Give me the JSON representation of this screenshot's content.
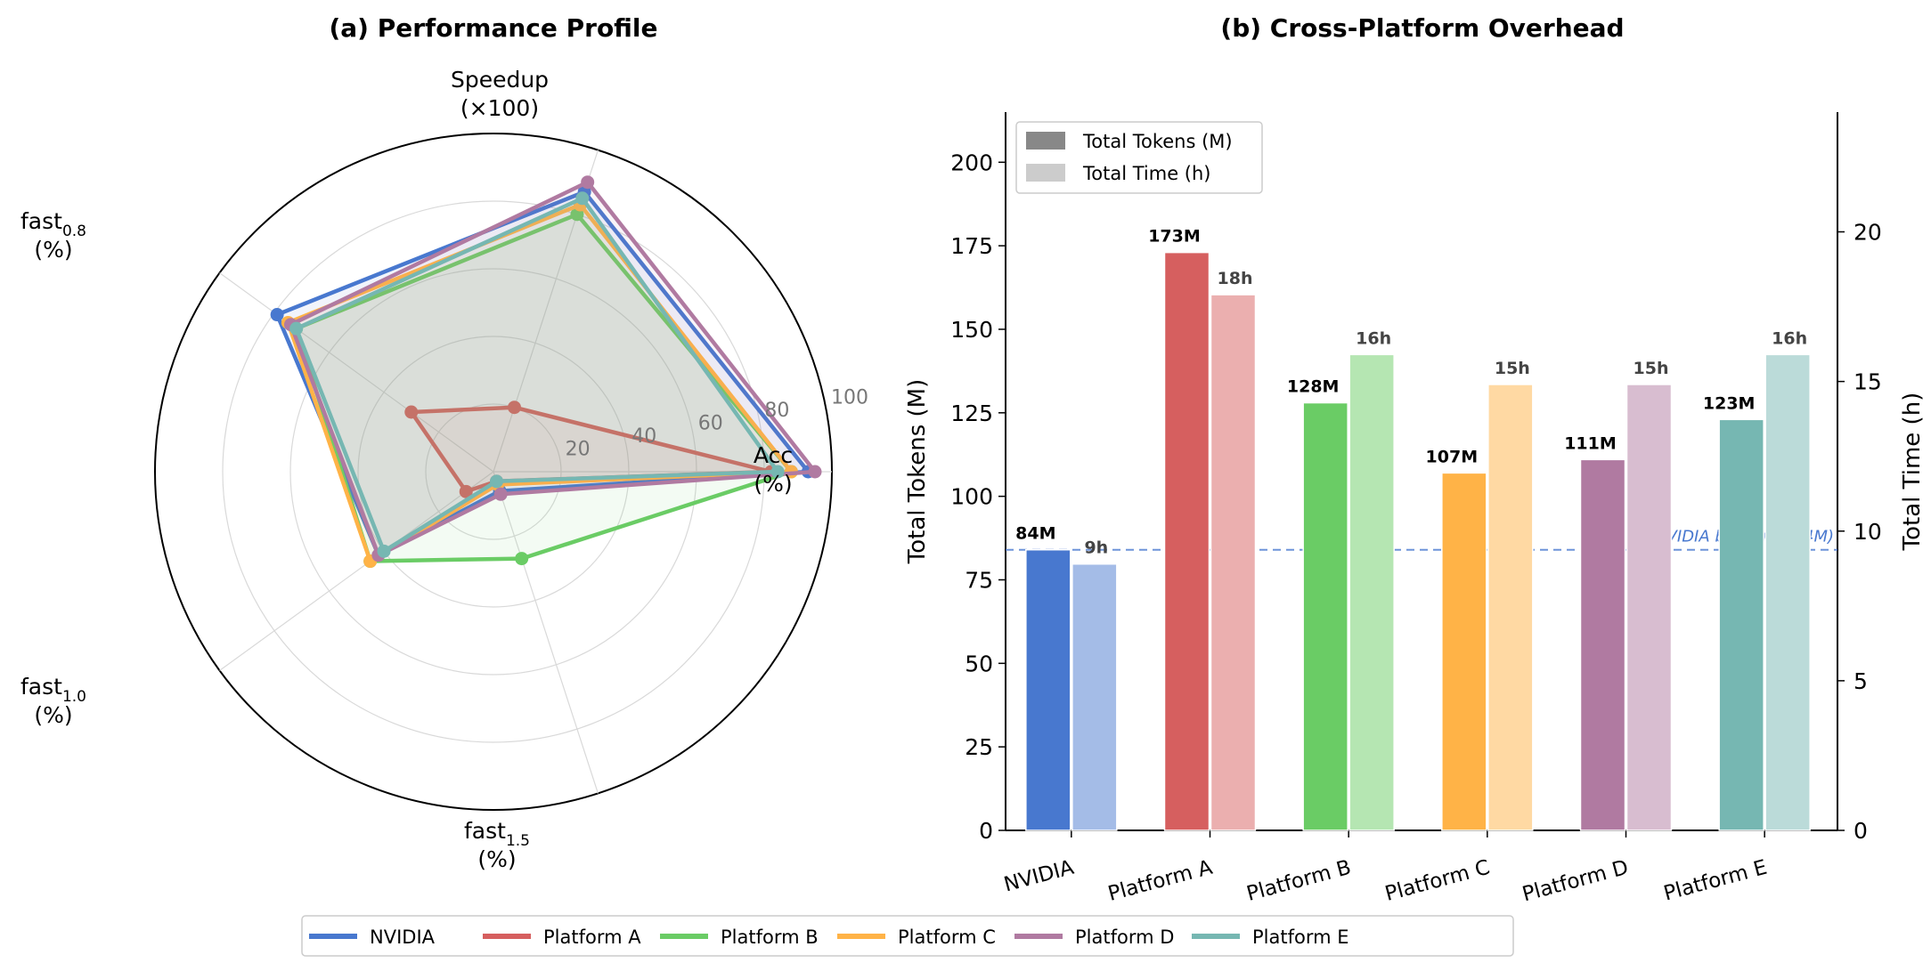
{
  "colors": {
    "NVIDIA": "#4878cf",
    "Platform A": "#d65f5f",
    "Platform B": "#6acc65",
    "Platform C": "#ffb347",
    "Platform D": "#b07aa1",
    "Platform E": "#76b7b2"
  },
  "legend": {
    "entries": [
      "NVIDIA",
      "Platform A",
      "Platform B",
      "Platform C",
      "Platform D",
      "Platform E"
    ]
  },
  "chart_data": [
    {
      "type": "radar",
      "title": "(a) Performance Profile",
      "axes": [
        {
          "key": "acc",
          "label_main": "Acc",
          "label_sub": "",
          "label_unit": "(%)"
        },
        {
          "key": "speedup",
          "label_main": "Speedup",
          "label_sub": "",
          "label_unit": "(×100)"
        },
        {
          "key": "fast08",
          "label_main": "fast",
          "label_sub": "0.8",
          "label_unit": "(%)"
        },
        {
          "key": "fast10",
          "label_main": "fast",
          "label_sub": "1.0",
          "label_unit": "(%)"
        },
        {
          "key": "fast15",
          "label_main": "fast",
          "label_sub": "1.5",
          "label_unit": "(%)"
        }
      ],
      "rlim": [
        0,
        100
      ],
      "rticks": [
        20,
        40,
        60,
        80,
        100
      ],
      "grid": true,
      "series": [
        {
          "name": "NVIDIA",
          "values": [
            93,
            87,
            79,
            42,
            6
          ]
        },
        {
          "name": "Platform A",
          "values": [
            82,
            20,
            30,
            10,
            3
          ]
        },
        {
          "name": "Platform B",
          "values": [
            88,
            80,
            72,
            45,
            27
          ]
        },
        {
          "name": "Platform C",
          "values": [
            88,
            83,
            75,
            45,
            4
          ]
        },
        {
          "name": "Platform D",
          "values": [
            95,
            90,
            74,
            42,
            7
          ]
        },
        {
          "name": "Platform E",
          "values": [
            84,
            85,
            72,
            40,
            3
          ]
        }
      ]
    },
    {
      "type": "bar",
      "title": "(b) Cross-Platform Overhead",
      "categories": [
        "NVIDIA",
        "Platform A",
        "Platform B",
        "Platform C",
        "Platform D",
        "Platform E"
      ],
      "series": [
        {
          "name": "Total Tokens (M)",
          "axis": "left",
          "values": [
            84,
            173,
            128,
            107,
            111,
            123
          ],
          "labels": [
            "84M",
            "173M",
            "128M",
            "107M",
            "111M",
            "123M"
          ]
        },
        {
          "name": "Total Time (h)",
          "axis": "right",
          "values": [
            8.9,
            17.9,
            15.9,
            14.9,
            14.9,
            15.9
          ],
          "labels": [
            "9h",
            "18h",
            "16h",
            "15h",
            "15h",
            "16h"
          ]
        }
      ],
      "ylabel": "Total Tokens (M)",
      "ylabel_right": "Total Time (h)",
      "ylim": [
        0,
        215
      ],
      "ylim_right": [
        0,
        24
      ],
      "yticks": [
        0,
        25,
        50,
        75,
        100,
        125,
        150,
        175,
        200
      ],
      "yticks_right": [
        0,
        5,
        10,
        15,
        20
      ],
      "baseline": {
        "value": 84,
        "label": "NVIDIA baseline (84M)"
      },
      "legend_position": "top-left"
    }
  ]
}
